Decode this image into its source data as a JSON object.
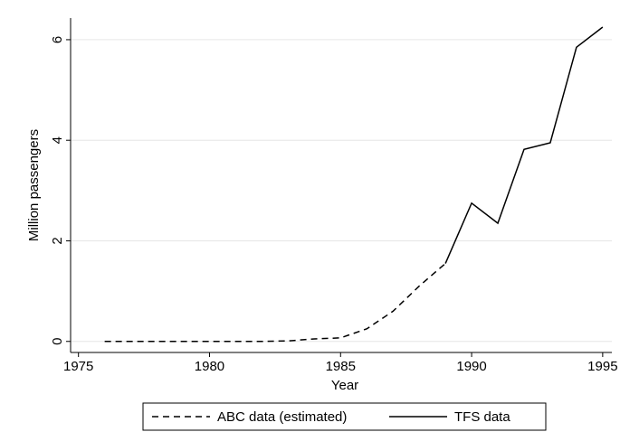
{
  "chart_data": {
    "type": "line",
    "x_label": "Year",
    "y_label": "Million passengers",
    "x": [
      1976,
      1977,
      1978,
      1979,
      1980,
      1981,
      1982,
      1983,
      1984,
      1985,
      1986,
      1987,
      1988,
      1989,
      1990,
      1991,
      1992,
      1993,
      1994,
      1995
    ],
    "series": [
      {
        "name": "ABC data (estimated)",
        "color": "#000000",
        "linestyle": "dashed",
        "values": [
          0,
          0,
          0,
          0,
          0,
          0,
          0,
          0.01,
          0.05,
          0.07,
          0.25,
          0.6,
          1.1,
          1.55,
          null,
          null,
          null,
          null,
          null,
          null
        ]
      },
      {
        "name": "TFS data",
        "color": "#000000",
        "linestyle": "solid",
        "values": [
          null,
          null,
          null,
          null,
          null,
          null,
          null,
          null,
          null,
          null,
          null,
          null,
          null,
          1.55,
          2.75,
          2.35,
          3.82,
          3.95,
          5.85,
          6.25
        ]
      }
    ],
    "xlim": [
      1974.7,
      1995.35
    ],
    "xticks": [
      1975,
      1980,
      1985,
      1990,
      1995
    ],
    "ylim": [
      -0.22,
      6.43
    ],
    "yticks": [
      0,
      2,
      4,
      6
    ],
    "grid": true,
    "legend": "bottom"
  }
}
